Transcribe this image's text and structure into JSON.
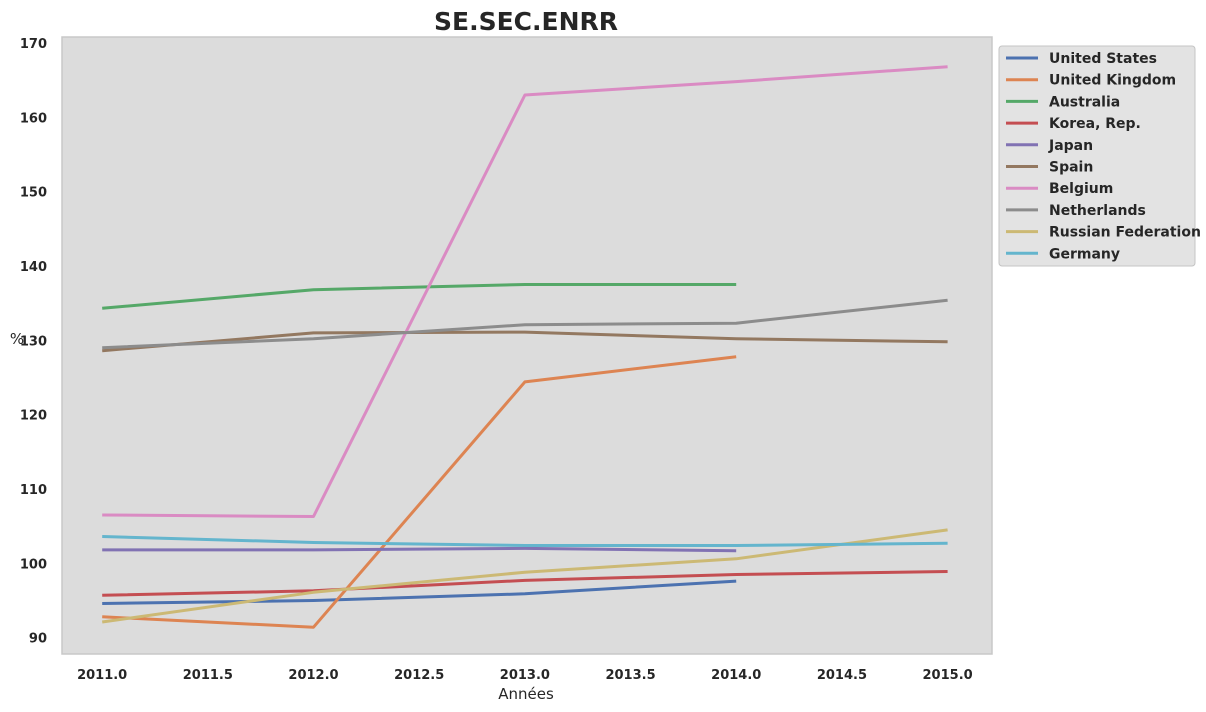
{
  "chart_data": {
    "type": "line",
    "title": "SE.SEC.ENRR",
    "xlabel": "Années",
    "ylabel": "%",
    "xlim": [
      2010.81,
      2015.21
    ],
    "ylim": [
      87.8,
      170.8
    ],
    "x_ticks": [
      2011.0,
      2011.5,
      2012.0,
      2012.5,
      2013.0,
      2013.5,
      2014.0,
      2014.5,
      2015.0
    ],
    "x_tick_labels": [
      "2011.0",
      "2011.5",
      "2012.0",
      "2012.5",
      "2013.0",
      "2013.5",
      "2014.0",
      "2014.5",
      "2015.0"
    ],
    "y_ticks": [
      90,
      100,
      110,
      120,
      130,
      140,
      150,
      160,
      170
    ],
    "y_tick_labels": [
      "90",
      "100",
      "110",
      "120",
      "130",
      "140",
      "150",
      "160",
      "170"
    ],
    "grid": false,
    "legend_position": "outside-top-right",
    "colors": {
      "plot_background": "#dcdcdc",
      "plot_border": "#c8c8c8",
      "legend_background": "#e3e3e3",
      "legend_border": "#c4c4c4"
    },
    "series": [
      {
        "name": "United States",
        "color": "#4c72b0",
        "x": [
          2011,
          2012,
          2013,
          2014
        ],
        "values": [
          94.6,
          95.0,
          95.9,
          97.6
        ]
      },
      {
        "name": "United Kingdom",
        "color": "#dd8452",
        "x": [
          2011,
          2012,
          2013,
          2014
        ],
        "values": [
          92.8,
          91.4,
          124.4,
          127.8
        ]
      },
      {
        "name": "Australia",
        "color": "#55a868",
        "x": [
          2011,
          2012,
          2013,
          2014
        ],
        "values": [
          134.3,
          136.8,
          137.5,
          137.5
        ]
      },
      {
        "name": "Korea, Rep.",
        "color": "#c44e52",
        "x": [
          2011,
          2012,
          2013,
          2014,
          2015
        ],
        "values": [
          95.7,
          96.3,
          97.7,
          98.5,
          98.9
        ]
      },
      {
        "name": "Japan",
        "color": "#8172b3",
        "x": [
          2011,
          2012,
          2013,
          2014
        ],
        "values": [
          101.8,
          101.8,
          102.0,
          101.7
        ]
      },
      {
        "name": "Spain",
        "color": "#937860",
        "x": [
          2011,
          2012,
          2013,
          2014,
          2015
        ],
        "values": [
          128.6,
          131.0,
          131.1,
          130.2,
          129.8
        ]
      },
      {
        "name": "Belgium",
        "color": "#da8bc3",
        "x": [
          2011,
          2012,
          2013,
          2014,
          2015
        ],
        "values": [
          106.5,
          106.3,
          163.0,
          164.8,
          166.8
        ]
      },
      {
        "name": "Netherlands",
        "color": "#8c8c8c",
        "x": [
          2011,
          2012,
          2013,
          2014,
          2015
        ],
        "values": [
          129.0,
          130.2,
          132.1,
          132.3,
          135.4
        ]
      },
      {
        "name": "Russian Federation",
        "color": "#ccb974",
        "x": [
          2011,
          2012,
          2013,
          2014,
          2015
        ],
        "values": [
          92.1,
          96.1,
          98.8,
          100.6,
          104.5
        ]
      },
      {
        "name": "Germany",
        "color": "#64b5cd",
        "x": [
          2011,
          2012,
          2013,
          2014,
          2015
        ],
        "values": [
          103.6,
          102.8,
          102.4,
          102.4,
          102.7
        ]
      }
    ]
  }
}
